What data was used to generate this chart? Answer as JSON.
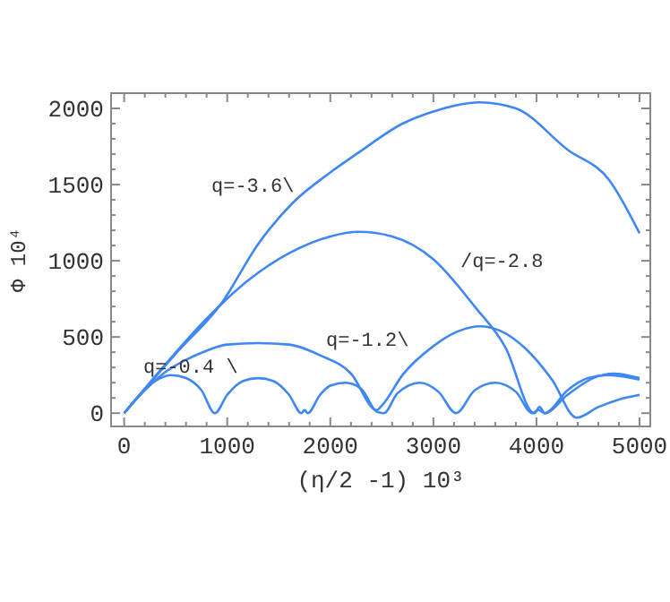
{
  "chart_data": {
    "type": "line",
    "xlabel": "(η/2 -1) 10³",
    "ylabel": "Φ 10⁴",
    "xlim": [
      -127,
      5104
    ],
    "ylim": [
      -87,
      2100
    ],
    "xticks": [
      0,
      1000,
      2000,
      3000,
      4000,
      5000
    ],
    "yticks": [
      0,
      500,
      1000,
      1500,
      2000
    ],
    "grid": false,
    "marker": "none",
    "line_style": "solid",
    "series": [
      {
        "color": "#3f87f5",
        "x": [
          0,
          500,
          943,
          1300,
          1635,
          2000,
          2274,
          2700,
          3000,
          3450,
          3800,
          4300,
          4705,
          5000
        ],
        "values": [
          0,
          390,
          720,
          1110,
          1380,
          1580,
          1710,
          1900,
          1980,
          2040,
          2000,
          1730,
          1530,
          1180
        ]
      },
      {
        "color": "#3f87f5",
        "x": [
          0,
          400,
          800,
          1200,
          1600,
          2000,
          2274,
          2600,
          3000,
          3400,
          3700,
          3980,
          4030,
          4080,
          4300,
          4550,
          4750,
          5000
        ],
        "values": [
          0,
          320,
          620,
          870,
          1050,
          1160,
          1190,
          1160,
          1010,
          700,
          430,
          0,
          40,
          0,
          120,
          230,
          260,
          230
        ]
      },
      {
        "color": "#3f87f5",
        "x": [
          0,
          200,
          400,
          600,
          800,
          1000,
          1300,
          1600,
          1900,
          2200,
          2450,
          2500,
          2700,
          3000,
          3250,
          3450,
          3650,
          3900,
          4150,
          4390,
          4600,
          4800,
          5000
        ],
        "values": [
          0,
          150,
          270,
          350,
          410,
          450,
          460,
          450,
          380,
          260,
          20,
          50,
          250,
          440,
          540,
          570,
          540,
          420,
          220,
          -30,
          40,
          90,
          120
        ]
      },
      {
        "color": "#3f87f5",
        "x": [
          0,
          150,
          300,
          450,
          600,
          750,
          880,
          1000,
          1150,
          1300,
          1450,
          1600,
          1720,
          1750,
          1780,
          1900,
          2000,
          2150,
          2300,
          2450,
          2520,
          2650,
          2870,
          3050,
          3220,
          3400,
          3600,
          3800,
          3960,
          4020,
          4080,
          4300,
          4500,
          4700,
          4850,
          5000
        ],
        "values": [
          0,
          120,
          210,
          250,
          230,
          150,
          0,
          120,
          210,
          230,
          210,
          120,
          0,
          20,
          0,
          120,
          180,
          200,
          160,
          10,
          0,
          130,
          200,
          140,
          0,
          150,
          200,
          140,
          0,
          20,
          0,
          150,
          230,
          250,
          240,
          220
        ]
      }
    ],
    "annotations": [
      "q=-3.6\\",
      "/q=-2.8",
      "q=-1.2\\",
      "q=-0.4 \\"
    ]
  }
}
